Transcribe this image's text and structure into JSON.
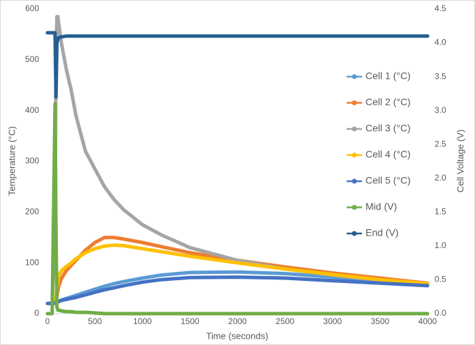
{
  "chart_data": {
    "type": "line",
    "xlabel": "Time (seconds)",
    "ylabel": "Temperature (°C)",
    "y2label": "Cell Voltage (V)",
    "x": [
      0,
      50,
      80,
      90,
      100,
      110,
      120,
      150,
      200,
      250,
      300,
      400,
      500,
      600,
      700,
      800,
      1000,
      1200,
      1500,
      2000,
      2500,
      3000,
      3500,
      4000
    ],
    "xlim": [
      0,
      4000
    ],
    "xticks": [
      0,
      500,
      1000,
      1500,
      2000,
      2500,
      3000,
      3500,
      4000
    ],
    "ylim": [
      0,
      600
    ],
    "yticks": [
      0,
      100,
      200,
      300,
      400,
      500,
      600
    ],
    "y2lim": [
      0,
      4.5
    ],
    "y2ticks": [
      {
        "value": 0,
        "label": "0.0"
      },
      0.5,
      {
        "value": 1,
        "label": "1.0"
      },
      1.5,
      {
        "value": 2,
        "label": "2.0"
      },
      2.5,
      {
        "value": 3,
        "label": "3.0"
      },
      3.5,
      {
        "value": 4,
        "label": "4.0"
      },
      4.5
    ],
    "grid": false,
    "legend": "right",
    "series": [
      {
        "name": "Cell 1 (°C)",
        "color": "#5b9bd5",
        "values": [
          20,
          20,
          21,
          22,
          23,
          24,
          25,
          27,
          30,
          33,
          36,
          42,
          48,
          54,
          59,
          63,
          70,
          76,
          81,
          82,
          79,
          72,
          65,
          58
        ]
      },
      {
        "name": "Cell 2 (°C)",
        "color": "#ed7d31",
        "values": [
          20,
          20,
          20,
          25,
          35,
          45,
          55,
          70,
          85,
          95,
          105,
          125,
          140,
          150,
          150,
          147,
          140,
          132,
          120,
          105,
          92,
          80,
          70,
          60
        ]
      },
      {
        "name": "Cell 3 (°C)",
        "color": "#a5a5a5",
        "values": [
          20,
          20,
          200,
          500,
          585,
          585,
          570,
          530,
          480,
          440,
          390,
          320,
          285,
          250,
          225,
          205,
          175,
          155,
          130,
          105,
          88,
          76,
          66,
          58
        ]
      },
      {
        "name": "Cell 4 (°C)",
        "color": "#ffc000",
        "values": [
          20,
          20,
          20,
          30,
          50,
          65,
          75,
          85,
          93,
          100,
          108,
          120,
          128,
          133,
          135,
          134,
          128,
          122,
          113,
          100,
          88,
          77,
          67,
          59
        ]
      },
      {
        "name": "Cell 5 (°C)",
        "color": "#4472c4",
        "values": [
          20,
          20,
          21,
          22,
          22,
          23,
          24,
          26,
          28,
          30,
          32,
          37,
          42,
          47,
          51,
          55,
          62,
          67,
          71,
          72,
          70,
          65,
          60,
          55
        ]
      },
      {
        "name": "Mid (V)",
        "color": "#70ad47",
        "axis": "y2",
        "values": [
          0,
          0,
          3.1,
          1.2,
          0.1,
          0.05,
          0.05,
          0.04,
          0.03,
          0.03,
          0.02,
          0.02,
          0.01,
          0,
          0,
          0,
          0,
          0,
          0,
          0,
          0,
          0,
          0,
          0
        ]
      },
      {
        "name": "End (V)",
        "color": "#255e91",
        "axis": "y2",
        "values": [
          4.15,
          4.15,
          4.15,
          3.2,
          4.0,
          4.05,
          4.08,
          4.09,
          4.1,
          4.1,
          4.1,
          4.1,
          4.1,
          4.1,
          4.1,
          4.1,
          4.1,
          4.1,
          4.1,
          4.1,
          4.1,
          4.1,
          4.1,
          4.1
        ]
      }
    ]
  }
}
